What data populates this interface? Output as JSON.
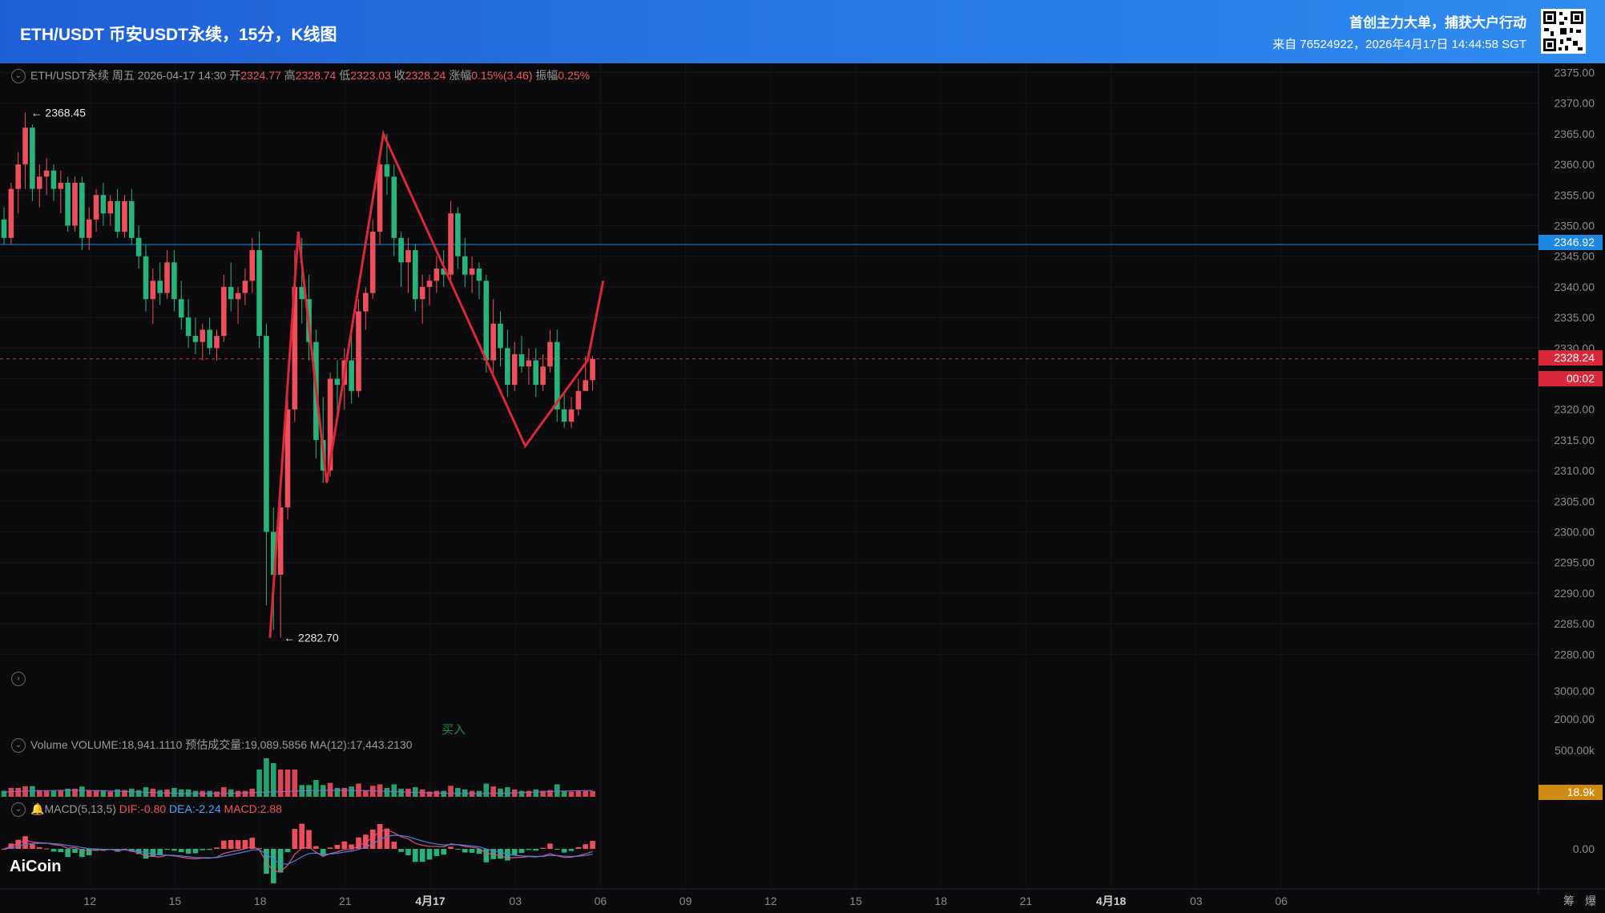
{
  "header": {
    "title": "ETH/USDT 币安USDT永续，15分，K线图",
    "slogan": "首创主力大单，捕获大户行动",
    "source": "来自 76524922，2026年4月17日 14:44:58 SGT"
  },
  "info_bar": {
    "symbol": "ETH/USDT永续",
    "weekday": "周五",
    "datetime": "2026-04-17 14:30",
    "open_label": "开",
    "open": "2324.77",
    "high_label": "高",
    "high": "2328.74",
    "low_label": "低",
    "low": "2323.03",
    "close_label": "收",
    "close": "2328.24",
    "change_label": "涨幅",
    "change": "0.15%(3.46)",
    "amplitude_label": "振幅",
    "amplitude": "0.25%"
  },
  "volume_bar": {
    "name": "Volume",
    "volume": "VOLUME:18,941.1110",
    "estimate": "预估成交量:19,089.5856",
    "ma": "MA(12):17,443.2130"
  },
  "macd_bar": {
    "name": "MACD(5,13,5)",
    "dif": "DIF:-0.80",
    "dea": "DEA:-2.24",
    "macd": "MACD:2.88"
  },
  "annotations": {
    "buy": "买入"
  },
  "tags": {
    "blue_line": "2346.92",
    "price": "2328.24",
    "countdown": "00:02",
    "volume": "18.9k"
  },
  "logo": "AiCoin",
  "colors": {
    "up": "#ef4e5c",
    "down": "#27b37a",
    "zigzag": "#d8283a",
    "accent": "#1e88e5",
    "vol_tag": "#d08a12"
  },
  "chart_data": {
    "type": "candlestick",
    "timeframe": "15m",
    "y_axis": {
      "range": [
        2277,
        2377
      ],
      "ticks": [
        "2375.00",
        "2370.00",
        "2365.00",
        "2360.00",
        "2355.00",
        "2350.00",
        "2345.00",
        "2340.00",
        "2335.00",
        "2330.00",
        "2325.00",
        "2320.00",
        "2315.00",
        "2310.00",
        "2305.00",
        "2300.00",
        "2295.00",
        "2290.00",
        "2285.00",
        "2280.00"
      ]
    },
    "x_axis": {
      "ticks": [
        "12",
        "15",
        "18",
        "21",
        "4月17",
        "03",
        "06",
        "09",
        "12",
        "15",
        "18",
        "21",
        "4月18",
        "03",
        "06"
      ]
    },
    "hour_index_base": 12,
    "labeled_extremes": {
      "high": "2368.45",
      "low": "2282.70"
    },
    "reference_line": 2346.92,
    "last_price": 2328.24,
    "candles": [
      [
        2351.0,
        2353.0,
        2347.0,
        2348.0
      ],
      [
        2348.0,
        2357.0,
        2347.0,
        2356.0
      ],
      [
        2356.0,
        2362.0,
        2352.0,
        2360.0
      ],
      [
        2360.0,
        2368.45,
        2356.0,
        2366.0
      ],
      [
        2366.0,
        2366.5,
        2354.0,
        2356.0
      ],
      [
        2356.0,
        2360.0,
        2353.0,
        2358.0
      ],
      [
        2358.0,
        2361.0,
        2355.0,
        2359.0
      ],
      [
        2359.0,
        2360.0,
        2354.0,
        2356.0
      ],
      [
        2356.0,
        2359.0,
        2352.0,
        2357.0
      ],
      [
        2357.0,
        2358.0,
        2349.0,
        2350.0
      ],
      [
        2350.0,
        2358.0,
        2349.0,
        2357.0
      ],
      [
        2357.0,
        2358.0,
        2346.0,
        2348.0
      ],
      [
        2348.0,
        2353.0,
        2346.0,
        2351.0
      ],
      [
        2351.0,
        2356.0,
        2349.0,
        2355.0
      ],
      [
        2355.0,
        2357.0,
        2350.0,
        2352.0
      ],
      [
        2352.0,
        2355.0,
        2350.0,
        2354.0
      ],
      [
        2354.0,
        2356.0,
        2348.0,
        2349.0
      ],
      [
        2349.0,
        2355.0,
        2348.0,
        2354.0
      ],
      [
        2354.0,
        2356.0,
        2347.0,
        2348.0
      ],
      [
        2348.0,
        2350.0,
        2343.0,
        2345.0
      ],
      [
        2345.0,
        2347.0,
        2336.0,
        2338.0
      ],
      [
        2338.0,
        2343.0,
        2334.0,
        2341.0
      ],
      [
        2341.0,
        2344.0,
        2337.0,
        2339.0
      ],
      [
        2339.0,
        2346.0,
        2338.0,
        2344.0
      ],
      [
        2344.0,
        2346.0,
        2336.0,
        2338.0
      ],
      [
        2338.0,
        2341.0,
        2333.0,
        2335.0
      ],
      [
        2335.0,
        2338.0,
        2330.0,
        2332.0
      ],
      [
        2332.0,
        2335.0,
        2329.0,
        2331.0
      ],
      [
        2331.0,
        2334.0,
        2328.0,
        2333.0
      ],
      [
        2333.0,
        2335.0,
        2329.0,
        2330.0
      ],
      [
        2330.0,
        2333.0,
        2328.0,
        2332.0
      ],
      [
        2332.0,
        2342.0,
        2331.0,
        2340.0
      ],
      [
        2340.0,
        2344.0,
        2336.0,
        2338.0
      ],
      [
        2338.0,
        2340.0,
        2334.0,
        2339.0
      ],
      [
        2339.0,
        2343.0,
        2337.0,
        2341.0
      ],
      [
        2341.0,
        2348.0,
        2339.0,
        2346.0
      ],
      [
        2346.0,
        2349.0,
        2330.0,
        2332.0
      ],
      [
        2332.0,
        2334.0,
        2288.0,
        2300.0
      ],
      [
        2300.0,
        2304.0,
        2284.0,
        2293.0
      ],
      [
        2293.0,
        2306.0,
        2282.7,
        2304.0
      ],
      [
        2304.0,
        2322.0,
        2302.0,
        2320.0
      ],
      [
        2320.0,
        2346.0,
        2318.0,
        2340.0
      ],
      [
        2340.0,
        2348.0,
        2334.0,
        2338.0
      ],
      [
        2338.0,
        2342.0,
        2328.0,
        2331.0
      ],
      [
        2331.0,
        2333.0,
        2312.0,
        2315.0
      ],
      [
        2315.0,
        2322.0,
        2308.0,
        2310.0
      ],
      [
        2310.0,
        2326.0,
        2309.0,
        2325.0
      ],
      [
        2325.0,
        2328.0,
        2318.0,
        2324.0
      ],
      [
        2324.0,
        2330.0,
        2320.0,
        2328.0
      ],
      [
        2328.0,
        2333.0,
        2321.0,
        2323.0
      ],
      [
        2323.0,
        2338.0,
        2322.0,
        2336.0
      ],
      [
        2336.0,
        2340.0,
        2333.0,
        2339.0
      ],
      [
        2339.0,
        2351.0,
        2338.0,
        2349.0
      ],
      [
        2349.0,
        2362.0,
        2347.0,
        2360.0
      ],
      [
        2360.0,
        2365.0,
        2355.0,
        2358.0
      ],
      [
        2358.0,
        2360.0,
        2345.0,
        2348.0
      ],
      [
        2348.0,
        2349.0,
        2340.0,
        2344.0
      ],
      [
        2344.0,
        2348.0,
        2339.0,
        2346.0
      ],
      [
        2346.0,
        2347.0,
        2336.0,
        2338.0
      ],
      [
        2338.0,
        2342.0,
        2334.0,
        2340.0
      ],
      [
        2340.0,
        2342.0,
        2337.0,
        2341.0
      ],
      [
        2341.0,
        2345.0,
        2339.0,
        2343.0
      ],
      [
        2343.0,
        2346.0,
        2340.0,
        2342.0
      ],
      [
        2342.0,
        2354.0,
        2341.0,
        2352.0
      ],
      [
        2352.0,
        2353.0,
        2343.0,
        2345.0
      ],
      [
        2345.0,
        2348.0,
        2340.0,
        2342.0
      ],
      [
        2342.0,
        2345.0,
        2339.0,
        2343.0
      ],
      [
        2343.0,
        2344.0,
        2338.0,
        2341.0
      ],
      [
        2341.0,
        2342.0,
        2326.0,
        2328.0
      ],
      [
        2328.0,
        2338.0,
        2326.0,
        2334.0
      ],
      [
        2334.0,
        2336.0,
        2327.0,
        2330.0
      ],
      [
        2330.0,
        2333.0,
        2322.0,
        2324.0
      ],
      [
        2324.0,
        2331.0,
        2323.0,
        2329.0
      ],
      [
        2329.0,
        2332.0,
        2326.0,
        2327.0
      ],
      [
        2327.0,
        2330.0,
        2324.0,
        2328.0
      ],
      [
        2328.0,
        2330.0,
        2322.0,
        2324.0
      ],
      [
        2324.0,
        2329.0,
        2323.0,
        2327.0
      ],
      [
        2327.0,
        2333.0,
        2326.0,
        2331.0
      ],
      [
        2331.0,
        2333.0,
        2318.0,
        2320.0
      ],
      [
        2320.0,
        2323.0,
        2317.0,
        2318.0
      ],
      [
        2318.0,
        2322.0,
        2317.0,
        2320.0
      ],
      [
        2320.0,
        2325.0,
        2319.0,
        2323.0
      ],
      [
        2323.0,
        2328.74,
        2323.0,
        2324.77
      ],
      [
        2324.77,
        2328.74,
        2323.03,
        2328.24
      ]
    ],
    "zigzag": [
      [
        37.5,
        2282.7
      ],
      [
        41.5,
        2349
      ],
      [
        45.5,
        2308
      ],
      [
        53.5,
        2365
      ],
      [
        73.5,
        2314
      ],
      [
        82.3,
        2328
      ],
      [
        84.5,
        2341
      ]
    ],
    "volume": {
      "axis_ticks": [
        "3000.00",
        "2000.00",
        "500.00k"
      ],
      "last": "18.9k"
    },
    "macd": {
      "axis_ticks": [
        "0.00"
      ]
    }
  }
}
